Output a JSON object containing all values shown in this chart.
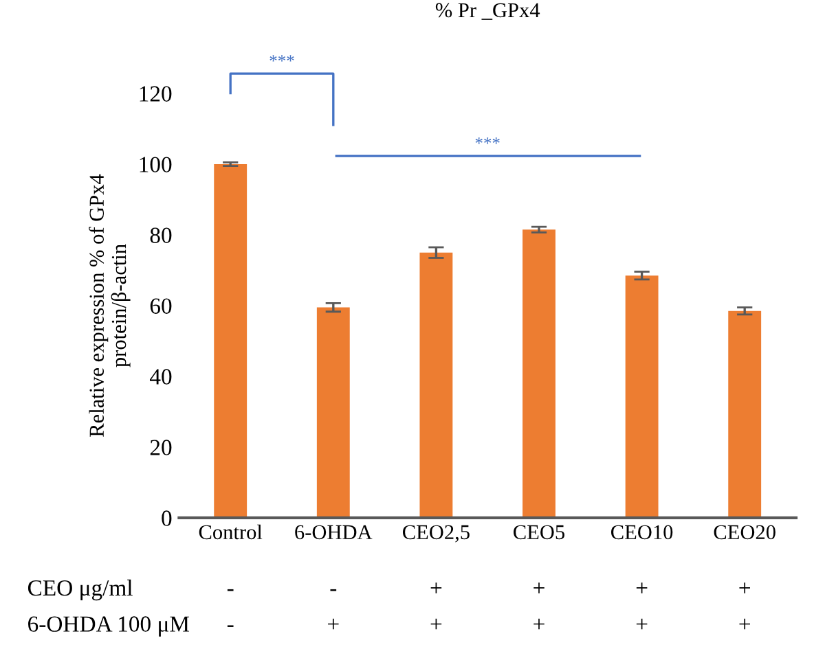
{
  "chart_data": {
    "type": "bar",
    "title": "% Pr _GPx4",
    "ylabel": "Relative expression % of GPx4\nprotein/β-actin",
    "categories": [
      "Control",
      "6-OHDA",
      "CEO2,5",
      "CEO5",
      "CEO10",
      "CEO20"
    ],
    "values": [
      100,
      59.5,
      75,
      81.5,
      68.5,
      58.5
    ],
    "color": "#ed7d31",
    "errors": [
      0.5,
      1.2,
      1.5,
      0.8,
      1.1,
      1
    ],
    "ylim": [
      0,
      120
    ],
    "yticks": [
      0,
      20,
      40,
      60,
      80,
      100,
      120
    ],
    "grid": false,
    "legend": false,
    "annotations": [
      "***",
      "***",
      "CEO μg/ml",
      "-",
      "-",
      "+",
      "+",
      "+",
      "+",
      "6-OHDA 100 μM",
      "-",
      "+",
      "+",
      "+",
      "+",
      "+"
    ]
  }
}
